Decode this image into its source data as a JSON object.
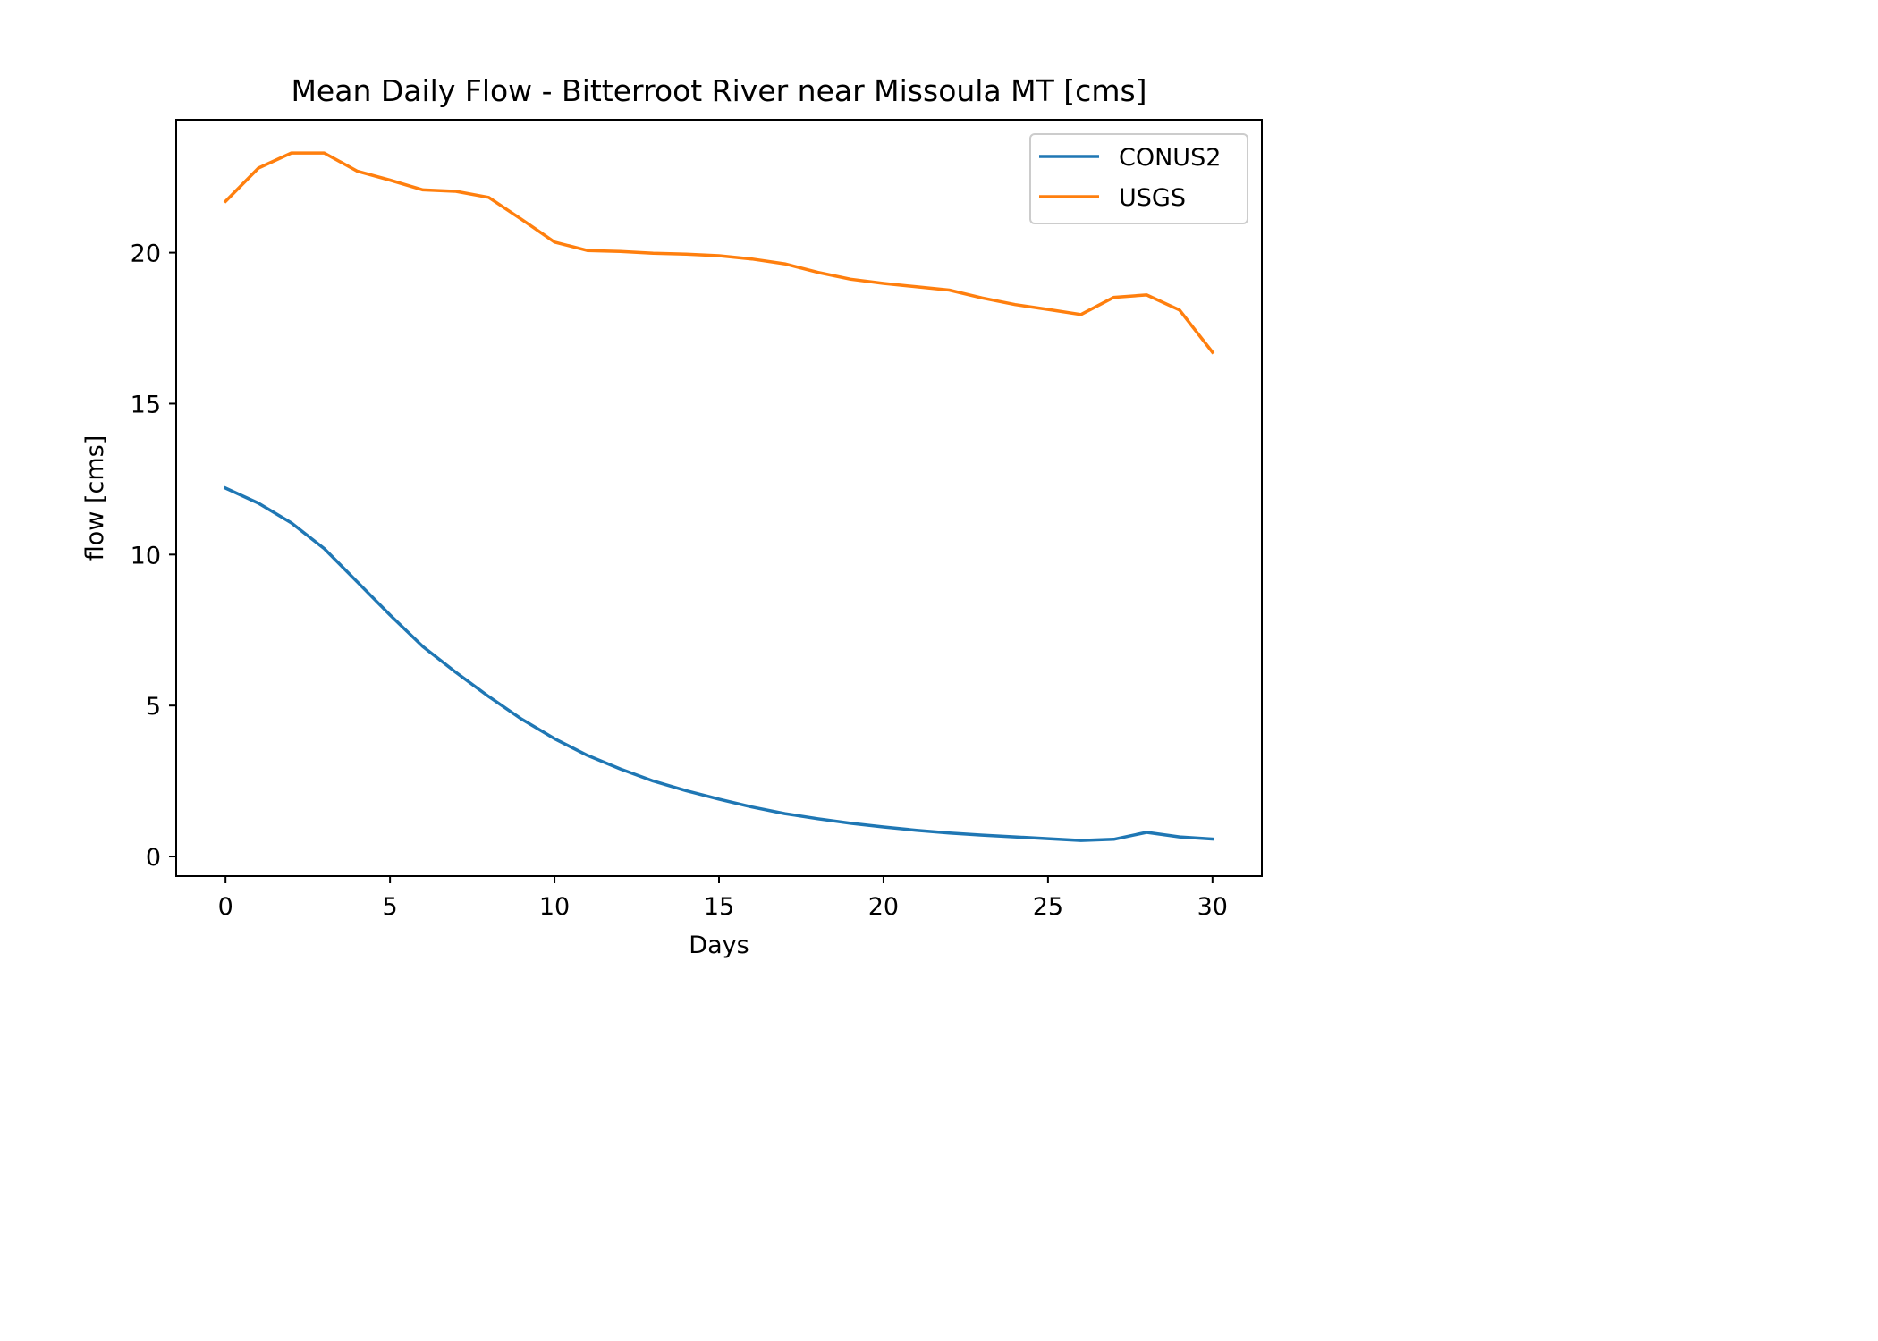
{
  "chart_data": {
    "type": "line",
    "title": "Mean Daily Flow - Bitterroot River near Missoula MT [cms]",
    "xlabel": "Days",
    "ylabel": "flow [cms]",
    "xlim": [
      -1.5,
      31.5
    ],
    "ylim": [
      -0.65,
      24.4
    ],
    "xticks": [
      0,
      5,
      10,
      15,
      20,
      25,
      30
    ],
    "yticks": [
      0,
      5,
      10,
      15,
      20
    ],
    "grid": false,
    "legend_position": "top-right",
    "x": [
      0,
      1,
      2,
      3,
      4,
      5,
      6,
      7,
      8,
      9,
      10,
      11,
      12,
      13,
      14,
      15,
      16,
      17,
      18,
      19,
      20,
      21,
      22,
      23,
      24,
      25,
      26,
      27,
      28,
      29,
      30
    ],
    "series": [
      {
        "name": "CONUS2",
        "color": "#1f77b4",
        "values": [
          12.2,
          11.7,
          11.05,
          10.2,
          9.1,
          8.0,
          6.95,
          6.1,
          5.3,
          4.55,
          3.9,
          3.35,
          2.9,
          2.5,
          2.18,
          1.9,
          1.64,
          1.42,
          1.25,
          1.1,
          0.98,
          0.87,
          0.78,
          0.71,
          0.65,
          0.59,
          0.53,
          0.57,
          0.8,
          0.65,
          0.58
        ]
      },
      {
        "name": "USGS",
        "color": "#ff7f0e",
        "values": [
          21.7,
          22.8,
          23.3,
          23.3,
          22.7,
          22.4,
          22.08,
          22.03,
          21.83,
          21.1,
          20.35,
          20.07,
          20.04,
          19.98,
          19.95,
          19.9,
          19.79,
          19.63,
          19.35,
          19.12,
          18.98,
          18.87,
          18.76,
          18.5,
          18.28,
          18.12,
          17.95,
          18.52,
          18.6,
          18.1,
          16.7
        ]
      }
    ]
  }
}
